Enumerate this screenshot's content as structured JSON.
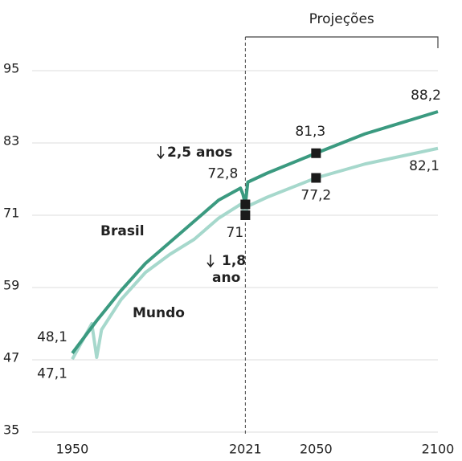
{
  "chart_data": {
    "type": "line",
    "bracket_label": "Projeções",
    "projection_start": 2021,
    "projection_end": 2100,
    "marker_x": [
      2021,
      2050
    ],
    "xlim": [
      1950,
      2100
    ],
    "xticks": [
      1950,
      2021,
      2050,
      2100
    ],
    "ylim": [
      35,
      95
    ],
    "yticks": [
      35,
      47,
      59,
      71,
      83,
      95
    ],
    "grid": true,
    "series": [
      {
        "name": "Brasil",
        "color": "#3b9a80",
        "x": [
          1950,
          1960,
          1970,
          1980,
          1990,
          2000,
          2010,
          2019,
          2020,
          2021,
          2022,
          2030,
          2050,
          2070,
          2100
        ],
        "values": [
          48.1,
          53.5,
          58.5,
          63,
          66.5,
          70,
          73.5,
          75.5,
          74.5,
          72.8,
          76.5,
          78,
          81.3,
          84.5,
          88.2
        ],
        "value_labels": [
          "48,1",
          null,
          null,
          null,
          null,
          null,
          null,
          null,
          null,
          "72,8",
          null,
          null,
          "81,3",
          null,
          "88,2"
        ]
      },
      {
        "name": "Mundo",
        "color": "#a6d8cc",
        "x": [
          1950,
          1958,
          1960,
          1962,
          1970,
          1980,
          1990,
          2000,
          2010,
          2019,
          2020,
          2021,
          2022,
          2030,
          2050,
          2070,
          2100
        ],
        "values": [
          47.1,
          53,
          47.4,
          52,
          57,
          61.5,
          64.5,
          67,
          70.5,
          72.8,
          72,
          71,
          72.5,
          74,
          77.2,
          79.5,
          82.1
        ],
        "value_labels": [
          "47,1",
          null,
          null,
          null,
          null,
          null,
          null,
          null,
          null,
          null,
          null,
          "71",
          null,
          null,
          "77,2",
          null,
          "82,1"
        ]
      }
    ],
    "annotations": [
      {
        "lines": [
          "2,5 anos"
        ]
      },
      {
        "lines": [
          "1,8",
          "ano"
        ]
      }
    ]
  }
}
